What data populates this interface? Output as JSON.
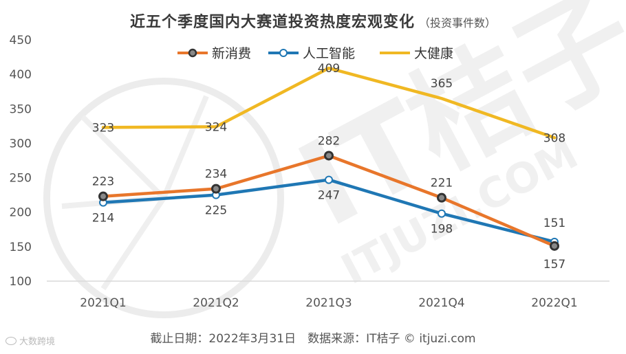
{
  "chart_data": {
    "type": "line",
    "title": "近五个季度国内大赛道投资热度宏观变化",
    "subtitle": "（投资事件数）",
    "categories": [
      "2021Q1",
      "2021Q2",
      "2021Q3",
      "2021Q4",
      "2022Q1"
    ],
    "series": [
      {
        "name": "新消费",
        "values": [
          223,
          234,
          282,
          221,
          151
        ],
        "color": "#E8762B",
        "marker": "dark-ring"
      },
      {
        "name": "人工智能",
        "values": [
          214,
          225,
          247,
          198,
          157
        ],
        "color": "#1F77B4",
        "marker": "hollow"
      },
      {
        "name": "大健康",
        "values": [
          323,
          324,
          409,
          365,
          308
        ],
        "color": "#F0B823",
        "marker": "none"
      }
    ],
    "ylim": [
      100,
      450
    ],
    "yticks": [
      100,
      150,
      200,
      250,
      300,
      350,
      400,
      450
    ],
    "grid": false,
    "legend": "top-center"
  },
  "footer": "截止日期：2022年3月31日　数据来源：IT桔子 © itjuzi.com",
  "watermark": "大数跨境"
}
